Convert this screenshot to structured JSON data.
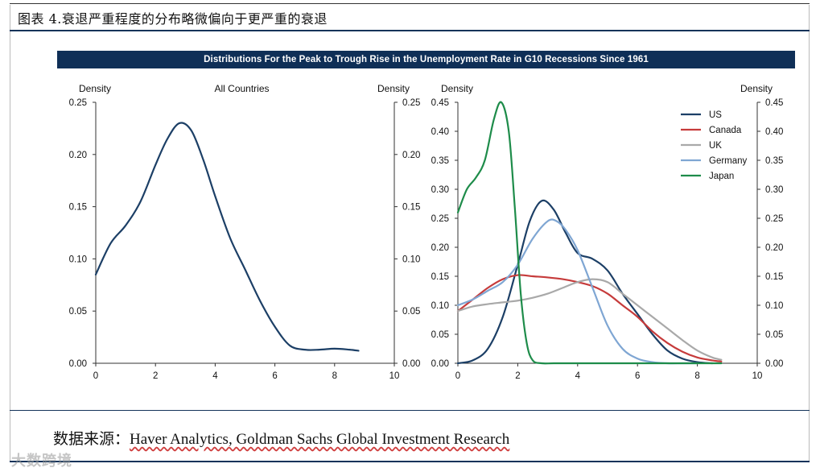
{
  "figure_title": "图表 4.衰退严重程度的分布略微偏向于更严重的衰退",
  "banner_title": "Distributions For the Peak to Trough Rise in the Unemployment Rate in G10 Recessions Since 1961",
  "source": {
    "label": "数据来源：",
    "text": "Haver Analytics, Goldman Sachs Global Investment Research"
  },
  "watermark": "大数跨境",
  "colors": {
    "navy": "#1c3f66",
    "banner": "#0f2f57",
    "US": "#1c3f66",
    "Canada": "#c63b3b",
    "UK": "#a9a9a9",
    "Germany": "#7fa6d3",
    "Japan": "#1e8c4a"
  },
  "chart_data": [
    {
      "type": "line",
      "title": "All Countries",
      "ylabel_left": "Density",
      "ylabel_right": "Density",
      "xlim": [
        0,
        10
      ],
      "ylim": [
        0,
        0.25
      ],
      "xticks": [
        0,
        2,
        4,
        6,
        8,
        10
      ],
      "yticks": [
        0.0,
        0.05,
        0.1,
        0.15,
        0.2,
        0.25
      ],
      "ytick_labels": [
        "0.00",
        "0.05",
        "0.10",
        "0.15",
        "0.20",
        "0.25"
      ],
      "series": [
        {
          "name": "All Countries",
          "color": "#1c3f66",
          "x": [
            0,
            0.5,
            1.0,
            1.5,
            2.0,
            2.4,
            2.8,
            3.2,
            3.6,
            4.0,
            4.5,
            5.0,
            5.5,
            6.0,
            6.5,
            7.0,
            7.5,
            8.0,
            8.5,
            8.8
          ],
          "y": [
            0.085,
            0.115,
            0.132,
            0.155,
            0.19,
            0.215,
            0.23,
            0.223,
            0.195,
            0.16,
            0.12,
            0.09,
            0.06,
            0.035,
            0.017,
            0.013,
            0.013,
            0.014,
            0.013,
            0.012
          ]
        }
      ]
    },
    {
      "type": "line",
      "title": "",
      "ylabel_left": "Density",
      "ylabel_right": "Density",
      "xlim": [
        0,
        10
      ],
      "ylim": [
        0,
        0.45
      ],
      "xticks": [
        0,
        2,
        4,
        6,
        8,
        10
      ],
      "yticks": [
        0.0,
        0.05,
        0.1,
        0.15,
        0.2,
        0.25,
        0.3,
        0.35,
        0.4,
        0.45
      ],
      "ytick_labels": [
        "0.00",
        "0.05",
        "0.10",
        "0.15",
        "0.20",
        "0.25",
        "0.30",
        "0.35",
        "0.40",
        "0.45"
      ],
      "legend": [
        "US",
        "Canada",
        "UK",
        "Germany",
        "Japan"
      ],
      "legend_position": "top-right",
      "series": [
        {
          "name": "US",
          "color": "#1c3f66",
          "x": [
            0,
            0.5,
            1.0,
            1.5,
            2.0,
            2.4,
            2.8,
            3.2,
            3.6,
            4.0,
            4.5,
            5.0,
            5.5,
            6.0,
            6.5,
            7.0,
            7.5,
            8.0,
            8.5
          ],
          "y": [
            0.0,
            0.005,
            0.025,
            0.08,
            0.17,
            0.245,
            0.28,
            0.265,
            0.225,
            0.19,
            0.18,
            0.16,
            0.12,
            0.085,
            0.05,
            0.022,
            0.008,
            0.002,
            0.0
          ]
        },
        {
          "name": "Canada",
          "color": "#c63b3b",
          "x": [
            0,
            0.5,
            1.0,
            1.5,
            2.0,
            2.5,
            3.0,
            3.5,
            4.0,
            4.5,
            5.0,
            5.5,
            6.0,
            6.5,
            7.0,
            7.5,
            8.0,
            8.5,
            8.8
          ],
          "y": [
            0.09,
            0.11,
            0.13,
            0.145,
            0.152,
            0.15,
            0.148,
            0.145,
            0.14,
            0.133,
            0.12,
            0.1,
            0.08,
            0.055,
            0.035,
            0.02,
            0.01,
            0.005,
            0.003
          ]
        },
        {
          "name": "UK",
          "color": "#a9a9a9",
          "x": [
            0,
            0.5,
            1.0,
            1.5,
            2.0,
            2.5,
            3.0,
            3.5,
            4.0,
            4.5,
            5.0,
            5.5,
            6.0,
            6.5,
            7.0,
            7.5,
            8.0,
            8.5,
            8.8
          ],
          "y": [
            0.09,
            0.098,
            0.102,
            0.105,
            0.108,
            0.113,
            0.12,
            0.13,
            0.14,
            0.145,
            0.14,
            0.12,
            0.1,
            0.08,
            0.06,
            0.04,
            0.022,
            0.01,
            0.006
          ]
        },
        {
          "name": "Germany",
          "color": "#7fa6d3",
          "x": [
            0,
            0.5,
            1.0,
            1.5,
            2.0,
            2.5,
            3.0,
            3.3,
            3.6,
            4.0,
            4.5,
            5.0,
            5.5,
            6.0,
            6.5,
            7.0,
            7.5,
            8.0
          ],
          "y": [
            0.1,
            0.11,
            0.125,
            0.14,
            0.17,
            0.215,
            0.245,
            0.245,
            0.23,
            0.195,
            0.13,
            0.065,
            0.025,
            0.008,
            0.002,
            0.0,
            0.0,
            0.0
          ]
        },
        {
          "name": "Japan",
          "color": "#1e8c4a",
          "x": [
            0,
            0.3,
            0.6,
            0.9,
            1.2,
            1.45,
            1.7,
            1.9,
            2.1,
            2.3,
            2.5,
            2.8,
            3.2,
            4.0,
            5.0,
            6.0,
            7.0,
            8.0,
            8.8
          ],
          "y": [
            0.26,
            0.3,
            0.32,
            0.35,
            0.42,
            0.45,
            0.4,
            0.27,
            0.12,
            0.035,
            0.005,
            0.0,
            0.0,
            0.0,
            0.0,
            0.0,
            0.0,
            0.0,
            0.0
          ]
        }
      ]
    }
  ]
}
